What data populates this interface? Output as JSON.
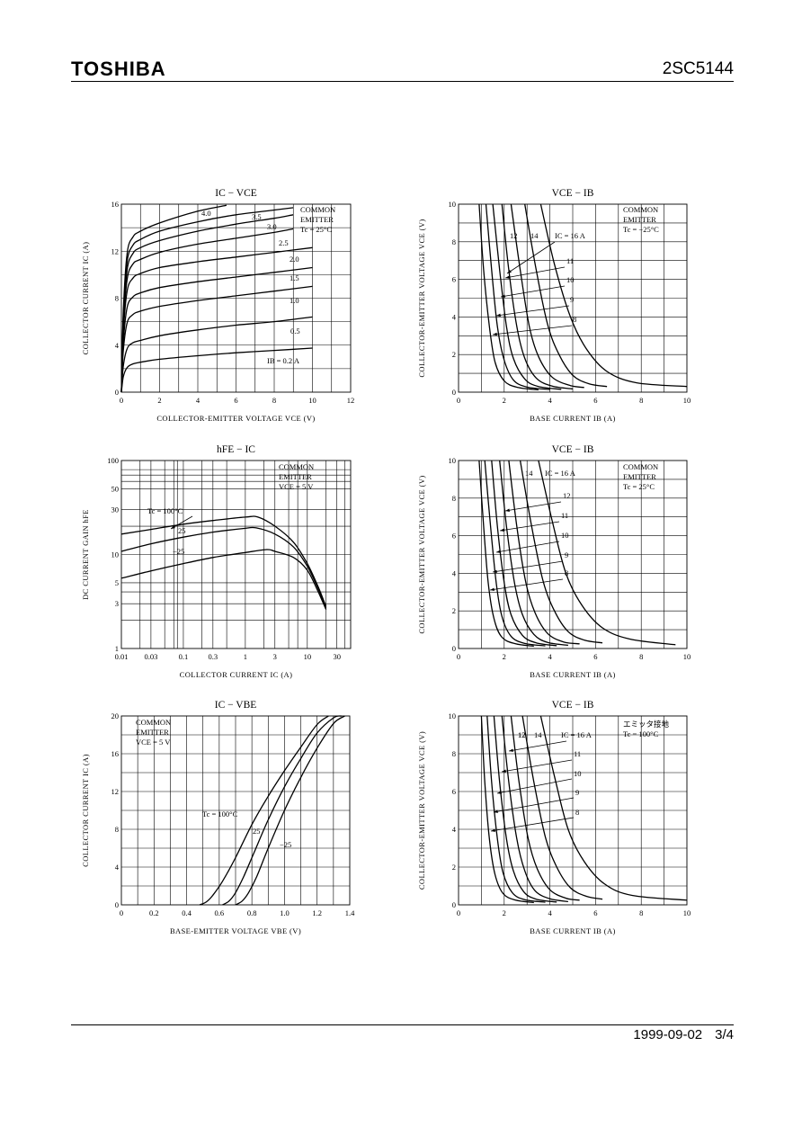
{
  "header": {
    "brand": "TOSHIBA",
    "part_number": "2SC5144"
  },
  "footer": {
    "date": "1999-09-02",
    "page": "3/4"
  },
  "charts": [
    {
      "id": "ic-vce",
      "type": "line",
      "title": "IC − VCE",
      "xlabel": "COLLECTOR-EMITTER VOLTAGE VCE (V)",
      "ylabel": "COLLECTOR CURRENT IC (A)",
      "xlim": [
        0,
        12
      ],
      "ylim": [
        0,
        16
      ],
      "x_ticks": [
        "0",
        "2",
        "4",
        "6",
        "8",
        "10",
        "12"
      ],
      "y_ticks": [
        "0",
        "4",
        "8",
        "12",
        "16"
      ],
      "annotation": [
        "COMMON",
        "EMITTER",
        "Tc = 25°C"
      ],
      "series": [
        {
          "label": "IB = 0.2 A",
          "x": [
            0,
            0.1,
            0.3,
            0.6,
            1,
            2,
            4,
            6,
            8,
            10
          ],
          "y": [
            0,
            1.3,
            2.1,
            2.4,
            2.55,
            2.8,
            3.1,
            3.35,
            3.55,
            3.75
          ]
        },
        {
          "label": "0.5",
          "x": [
            0,
            0.1,
            0.3,
            0.6,
            1,
            2,
            4,
            6,
            8,
            10
          ],
          "y": [
            0,
            2.2,
            3.7,
            4.2,
            4.4,
            4.8,
            5.3,
            5.7,
            6.0,
            6.4
          ]
        },
        {
          "label": "1.0",
          "x": [
            0,
            0.1,
            0.3,
            0.6,
            1,
            2,
            4,
            6,
            8,
            10
          ],
          "y": [
            0,
            3.5,
            5.9,
            6.6,
            6.9,
            7.3,
            7.8,
            8.2,
            8.6,
            9.0
          ]
        },
        {
          "label": "1.5",
          "x": [
            0,
            0.1,
            0.3,
            0.6,
            1,
            2,
            4,
            6,
            8,
            10
          ],
          "y": [
            0,
            4.2,
            7.2,
            8.1,
            8.45,
            8.9,
            9.4,
            9.8,
            10.2,
            10.6
          ]
        },
        {
          "label": "2.0",
          "x": [
            0,
            0.1,
            0.3,
            0.6,
            1,
            2,
            4,
            6,
            8,
            10
          ],
          "y": [
            0,
            5.0,
            8.6,
            9.7,
            10.1,
            10.6,
            11.1,
            11.5,
            11.9,
            12.3
          ]
        },
        {
          "label": "2.5",
          "x": [
            0,
            0.1,
            0.3,
            0.6,
            1,
            2,
            4,
            6,
            8,
            9
          ],
          "y": [
            0,
            5.5,
            9.6,
            10.9,
            11.3,
            11.9,
            12.6,
            13.1,
            13.6,
            13.9
          ]
        },
        {
          "label": "3.0",
          "x": [
            0,
            0.1,
            0.3,
            0.6,
            1,
            2,
            4,
            6,
            8,
            9
          ],
          "y": [
            0,
            6.0,
            10.4,
            11.8,
            12.3,
            12.9,
            13.7,
            14.3,
            14.8,
            15.1
          ]
        },
        {
          "label": "3.5",
          "x": [
            0,
            0.1,
            0.3,
            0.6,
            1,
            2,
            4,
            6,
            8,
            9
          ],
          "y": [
            0,
            6.4,
            11.1,
            12.5,
            13.0,
            13.7,
            14.5,
            15.1,
            15.5,
            15.7
          ]
        },
        {
          "label": "4.0",
          "x": [
            0,
            0.1,
            0.3,
            0.6,
            1,
            2,
            4,
            5.5
          ],
          "y": [
            0,
            6.8,
            11.8,
            13.2,
            13.7,
            14.4,
            15.4,
            15.9
          ]
        }
      ]
    },
    {
      "id": "vce-ib-25n",
      "type": "line",
      "title": "VCE − IB",
      "xlabel": "BASE CURRENT IB (A)",
      "ylabel": "COLLECTOR-EMITTER VOLTAGE VCE (V)",
      "xlim": [
        0,
        10
      ],
      "ylim": [
        0,
        10
      ],
      "x_ticks": [
        "0",
        "2",
        "4",
        "6",
        "8",
        "10"
      ],
      "y_ticks": [
        "0",
        "2",
        "4",
        "6",
        "8",
        "10"
      ],
      "annotation": [
        "COMMON",
        "EMITTER",
        "Tc = −25°C"
      ],
      "series": [
        {
          "label": "8",
          "x": [
            0.9,
            1.1,
            1.35,
            1.6,
            2.0,
            2.6,
            3.5
          ],
          "y": [
            10,
            6.5,
            3.5,
            1.6,
            0.6,
            0.25,
            0.12
          ]
        },
        {
          "label": "9",
          "x": [
            1.2,
            1.45,
            1.7,
            2.0,
            2.4,
            3.0,
            4.0
          ],
          "y": [
            10,
            6.5,
            3.5,
            1.7,
            0.65,
            0.27,
            0.14
          ]
        },
        {
          "label": "10",
          "x": [
            1.5,
            1.8,
            2.1,
            2.4,
            2.9,
            3.5,
            4.5
          ],
          "y": [
            10,
            6.5,
            3.5,
            1.8,
            0.7,
            0.3,
            0.15
          ]
        },
        {
          "label": "11",
          "x": [
            1.9,
            2.2,
            2.55,
            2.9,
            3.4,
            4.1,
            5.0
          ],
          "y": [
            10,
            6.5,
            3.5,
            1.8,
            0.75,
            0.32,
            0.17
          ]
        },
        {
          "label": "12",
          "x": [
            2.3,
            2.7,
            3.1,
            3.5,
            4.1,
            4.9,
            5.5
          ],
          "y": [
            10,
            6.5,
            3.5,
            1.9,
            0.8,
            0.35,
            0.25
          ]
        },
        {
          "label": "14",
          "x": [
            2.9,
            3.4,
            3.9,
            4.4,
            5.0,
            5.7,
            6.5
          ],
          "y": [
            10,
            6.5,
            3.6,
            2.0,
            0.9,
            0.45,
            0.3
          ]
        },
        {
          "label": "IC = 16 A",
          "x": [
            3.6,
            4.2,
            4.9,
            5.6,
            6.5,
            7.8,
            10
          ],
          "y": [
            10,
            6.8,
            4.0,
            2.3,
            1.1,
            0.5,
            0.3
          ]
        }
      ]
    },
    {
      "id": "hfe-ic",
      "type": "line",
      "title": "hFE − IC",
      "xlabel": "COLLECTOR CURRENT IC (A)",
      "ylabel": "DC CURRENT GAIN hFE",
      "xscale": "log",
      "yscale": "log",
      "xlim": [
        0.01,
        50
      ],
      "ylim": [
        1,
        100
      ],
      "x_ticks": [
        "0.01",
        "0.03",
        "0.1",
        "0.3",
        "1",
        "3",
        "10",
        "30"
      ],
      "y_ticks": [
        "1",
        "3",
        "5",
        "10",
        "30",
        "50",
        "100"
      ],
      "annotation": [
        "COMMON",
        "EMITTER",
        "VCE = 5 V"
      ],
      "series": [
        {
          "label": "Tc = 100°C",
          "x": [
            0.01,
            0.03,
            0.1,
            0.3,
            1,
            1.6,
            3,
            6,
            10,
            15,
            20
          ],
          "y": [
            16.5,
            18.5,
            21,
            23,
            25,
            25,
            20,
            13.5,
            8,
            4.5,
            2.8
          ]
        },
        {
          "label": "25",
          "x": [
            0.01,
            0.03,
            0.1,
            0.3,
            1,
            1.5,
            3,
            6,
            10,
            15,
            20
          ],
          "y": [
            10.8,
            13,
            15.3,
            17.3,
            19,
            19.2,
            16.5,
            12,
            7.5,
            4.3,
            2.7
          ]
        },
        {
          "label": "−25",
          "x": [
            0.01,
            0.03,
            0.1,
            0.3,
            1,
            2.2,
            3,
            6,
            10,
            15,
            20
          ],
          "y": [
            5.6,
            6.7,
            8,
            9.3,
            10.5,
            11.3,
            10.8,
            9.3,
            6.8,
            4,
            2.6
          ]
        }
      ]
    },
    {
      "id": "vce-ib-25",
      "type": "line",
      "title": "VCE − IB",
      "xlabel": "BASE CURRENT IB (A)",
      "ylabel": "COLLECTOR-EMITTER VOLTAGE VCE (V)",
      "xlim": [
        0,
        10
      ],
      "ylim": [
        0,
        10
      ],
      "x_ticks": [
        "0",
        "2",
        "4",
        "6",
        "8",
        "10"
      ],
      "y_ticks": [
        "0",
        "2",
        "4",
        "6",
        "8",
        "10"
      ],
      "annotation": [
        "COMMON",
        "EMITTER",
        "Tc = 25°C"
      ],
      "series": [
        {
          "label": "8",
          "x": [
            0.9,
            1.1,
            1.3,
            1.55,
            1.9,
            2.5,
            3.3
          ],
          "y": [
            10,
            6.5,
            3.5,
            1.6,
            0.6,
            0.25,
            0.12
          ]
        },
        {
          "label": "9",
          "x": [
            1.15,
            1.4,
            1.65,
            1.9,
            2.3,
            2.9,
            3.8
          ],
          "y": [
            10,
            6.5,
            3.5,
            1.7,
            0.65,
            0.27,
            0.14
          ]
        },
        {
          "label": "10",
          "x": [
            1.45,
            1.7,
            2.0,
            2.3,
            2.8,
            3.4,
            4.3
          ],
          "y": [
            10,
            6.5,
            3.5,
            1.8,
            0.7,
            0.3,
            0.15
          ]
        },
        {
          "label": "11",
          "x": [
            1.8,
            2.1,
            2.45,
            2.8,
            3.3,
            3.9,
            4.8
          ],
          "y": [
            10,
            6.5,
            3.5,
            1.8,
            0.75,
            0.32,
            0.17
          ]
        },
        {
          "label": "12",
          "x": [
            2.2,
            2.55,
            2.95,
            3.35,
            3.9,
            4.6,
            5.3
          ],
          "y": [
            10,
            6.5,
            3.5,
            1.9,
            0.8,
            0.35,
            0.25
          ]
        },
        {
          "label": "14",
          "x": [
            2.7,
            3.2,
            3.7,
            4.2,
            4.8,
            5.5,
            6.3
          ],
          "y": [
            10,
            6.5,
            3.6,
            2.0,
            0.9,
            0.45,
            0.3
          ]
        },
        {
          "label": "IC = 16 A",
          "x": [
            3.5,
            4.1,
            4.7,
            5.4,
            6.3,
            7.5,
            9.5
          ],
          "y": [
            10,
            6.8,
            4.0,
            2.3,
            1.1,
            0.5,
            0.2
          ]
        }
      ]
    },
    {
      "id": "ic-vbe",
      "type": "line",
      "title": "IC − VBE",
      "xlabel": "BASE-EMITTER VOLTAGE VBE (V)",
      "ylabel": "COLLECTOR CURRENT IC (A)",
      "xlim": [
        0,
        1.4
      ],
      "ylim": [
        0,
        20
      ],
      "x_ticks": [
        "0",
        "0.2",
        "0.4",
        "0.6",
        "0.8",
        "1.0",
        "1.2",
        "1.4"
      ],
      "y_ticks": [
        "0",
        "4",
        "8",
        "12",
        "16",
        "20"
      ],
      "annotation": [
        "COMMON",
        "EMITTER",
        "VCE = 5 V"
      ],
      "series": [
        {
          "label": "Tc = 100°C",
          "x": [
            0.48,
            0.52,
            0.56,
            0.62,
            0.7,
            0.8,
            0.9,
            1.0,
            1.1,
            1.2,
            1.27
          ],
          "y": [
            0,
            0.3,
            1,
            2.5,
            5,
            8.5,
            11.5,
            14.2,
            16.7,
            19.1,
            20
          ]
        },
        {
          "label": "25",
          "x": [
            0.62,
            0.66,
            0.7,
            0.75,
            0.82,
            0.9,
            1.0,
            1.1,
            1.2,
            1.3,
            1.35
          ],
          "y": [
            0,
            0.4,
            1.3,
            3,
            5.8,
            9,
            12.5,
            15.5,
            18.2,
            19.8,
            20
          ]
        },
        {
          "label": "−25",
          "x": [
            0.7,
            0.74,
            0.78,
            0.83,
            0.9,
            1.0,
            1.1,
            1.2,
            1.3,
            1.37
          ],
          "y": [
            0,
            0.4,
            1.3,
            3,
            6,
            10,
            13.5,
            16.6,
            19.2,
            20
          ]
        }
      ]
    },
    {
      "id": "vce-ib-100",
      "type": "line",
      "title": "VCE − IB",
      "xlabel": "BASE CURRENT IB (A)",
      "ylabel": "COLLECTOR-EMITTER VOLTAGE VCE (V)",
      "xlim": [
        0,
        10
      ],
      "ylim": [
        0,
        10
      ],
      "x_ticks": [
        "0",
        "2",
        "4",
        "6",
        "8",
        "10"
      ],
      "y_ticks": [
        "0",
        "2",
        "4",
        "6",
        "8",
        "10"
      ],
      "annotation": [
        "エミッタ接地",
        "Tc = 100°C"
      ],
      "series": [
        {
          "label": "8",
          "x": [
            1.0,
            1.15,
            1.35,
            1.6,
            1.95,
            2.5,
            3.3
          ],
          "y": [
            10,
            6.5,
            3.5,
            1.6,
            0.6,
            0.25,
            0.12
          ]
        },
        {
          "label": "9",
          "x": [
            1.25,
            1.45,
            1.7,
            1.95,
            2.35,
            2.9,
            3.8
          ],
          "y": [
            10,
            6.5,
            3.5,
            1.7,
            0.65,
            0.27,
            0.14
          ]
        },
        {
          "label": "10",
          "x": [
            1.55,
            1.8,
            2.1,
            2.4,
            2.85,
            3.4,
            4.3
          ],
          "y": [
            10,
            6.5,
            3.5,
            1.8,
            0.7,
            0.3,
            0.15
          ]
        },
        {
          "label": "11",
          "x": [
            1.9,
            2.2,
            2.55,
            2.9,
            3.35,
            4.0,
            4.8
          ],
          "y": [
            10,
            6.5,
            3.5,
            1.8,
            0.75,
            0.32,
            0.17
          ]
        },
        {
          "label": "12",
          "x": [
            2.3,
            2.65,
            3.05,
            3.45,
            4.0,
            4.7,
            5.3
          ],
          "y": [
            10,
            6.5,
            3.5,
            1.9,
            0.8,
            0.35,
            0.25
          ]
        },
        {
          "label": "14",
          "x": [
            2.8,
            3.3,
            3.8,
            4.3,
            4.9,
            5.6,
            6.3
          ],
          "y": [
            10,
            6.5,
            3.6,
            2.0,
            0.9,
            0.45,
            0.3
          ]
        },
        {
          "label": "IC = 16 A",
          "x": [
            3.6,
            4.2,
            4.8,
            5.5,
            6.4,
            7.6,
            10
          ],
          "y": [
            10,
            6.8,
            4.0,
            2.3,
            1.1,
            0.5,
            0.25
          ]
        }
      ]
    }
  ]
}
